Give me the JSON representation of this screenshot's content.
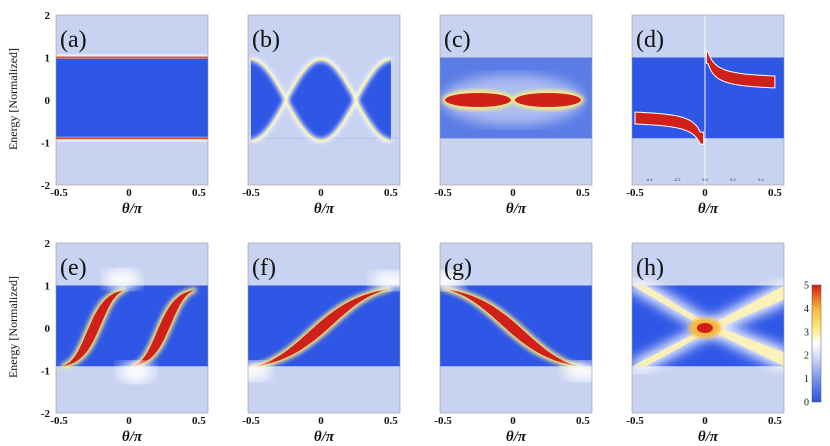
{
  "chart_data": [
    {
      "type": "heatmap",
      "panel_label": "(a)",
      "xlabel": "θ/π",
      "ylabel": "Energy [Normalized]",
      "xlim": [
        -0.5,
        0.5
      ],
      "ylim": [
        -2,
        2
      ],
      "x_ticks": [
        "-0.5",
        "0",
        "0.5"
      ],
      "y_ticks": [
        "2",
        "1",
        "0",
        "-1",
        "-2"
      ],
      "feature": "bright horizontal band edges at E = 1 and E = -1"
    },
    {
      "type": "heatmap",
      "panel_label": "(b)",
      "xlabel": "θ/π",
      "xlim": [
        -0.5,
        0.5
      ],
      "ylim": [
        -2,
        2
      ],
      "x_ticks": [
        "-0.5",
        "0",
        "0.5"
      ],
      "feature": "band edges oscillating as cos(2πθ), crossing at θ = ±0.25"
    },
    {
      "type": "heatmap",
      "panel_label": "(c)",
      "xlabel": "θ/π",
      "xlim": [
        -0.5,
        0.5
      ],
      "ylim": [
        -2,
        2
      ],
      "x_ticks": [
        "-0.5",
        "0",
        "0.5"
      ],
      "feature": "two red lens-shaped states at E = 0 centred at θ = ±0.25"
    },
    {
      "type": "heatmap",
      "panel_label": "(d)",
      "xlabel": "θ/π",
      "xlim": [
        -0.5,
        0.5
      ],
      "ylim": [
        -2,
        2
      ],
      "x_ticks": [
        "-0.5",
        "0",
        "0.5"
      ],
      "inner_x_ticks": [
        "-0.4",
        "-0.2",
        "0.0",
        "0.2",
        "0.4"
      ],
      "feature": "red curved branch below zero for θ<0 and above zero for θ>0"
    },
    {
      "type": "heatmap",
      "panel_label": "(e)",
      "xlabel": "θ/π",
      "ylabel": "Energy [Normalized]",
      "xlim": [
        -0.5,
        0.5
      ],
      "ylim": [
        -2,
        2
      ],
      "x_ticks": [
        "-0.5",
        "0",
        "0.5"
      ],
      "y_ticks": [
        "2",
        "1",
        "0",
        "-1",
        "-2"
      ],
      "feature": "two red rising S-curves from E = -1 to E = 1"
    },
    {
      "type": "heatmap",
      "panel_label": "(f)",
      "xlabel": "θ/π",
      "xlim": [
        -0.5,
        0.5
      ],
      "ylim": [
        -2,
        2
      ],
      "x_ticks": [
        "-0.5",
        "0",
        "0.5"
      ],
      "feature": "single red rising S-curve spanning the full θ range"
    },
    {
      "type": "heatmap",
      "panel_label": "(g)",
      "xlabel": "θ/π",
      "xlim": [
        -0.5,
        0.5
      ],
      "ylim": [
        -2,
        2
      ],
      "x_ticks": [
        "-0.5",
        "0",
        "0.5"
      ],
      "feature": "single red falling S-curve spanning the full θ range"
    },
    {
      "type": "heatmap",
      "panel_label": "(h)",
      "xlabel": "θ/π",
      "xlim": [
        -0.5,
        0.5
      ],
      "ylim": [
        -2,
        2
      ],
      "x_ticks": [
        "-0.5",
        "0",
        "0.5"
      ],
      "feature": "yellow X-shaped crossing with red spot at θ = 0, E = 0"
    }
  ],
  "colorbar": {
    "min": 0,
    "max": 5,
    "ticks": [
      "5",
      "4",
      "3",
      "2",
      "1",
      "0"
    ],
    "colors": [
      "#2b50e0",
      "#6f8ee8",
      "#c7d2f3",
      "#ffffff",
      "#ffe87a",
      "#f8b83a",
      "#d41b16"
    ]
  },
  "colors": {
    "background_blue": "#c8d3f1",
    "band_blue": "#2f57e6",
    "state_red": "#d0201a",
    "edge_yellow": "#fff07a"
  }
}
